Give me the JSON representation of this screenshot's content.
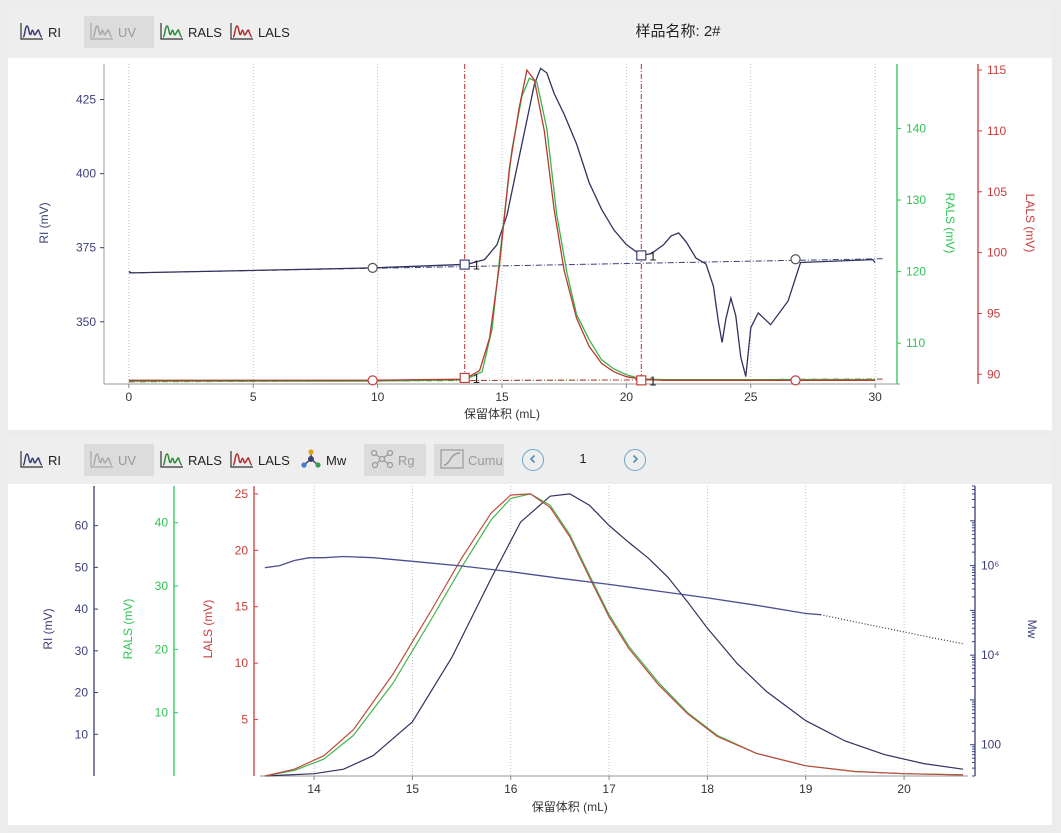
{
  "top": {
    "toolbar": {
      "buttons": [
        {
          "label": "RI",
          "icon": "ri-trace-icon",
          "color": "#3b3f78",
          "enabled": true
        },
        {
          "label": "UV",
          "icon": "uv-trace-icon",
          "color": "#9a9a9a",
          "enabled": false
        },
        {
          "label": "RALS",
          "icon": "rals-trace-icon",
          "color": "#2e8b3a",
          "enabled": true
        },
        {
          "label": "LALS",
          "icon": "lals-trace-icon",
          "color": "#b03030",
          "enabled": true
        }
      ]
    },
    "title": "样品名称: 2#"
  },
  "bottom": {
    "toolbar": {
      "buttons": [
        {
          "label": "RI",
          "icon": "ri-trace-icon",
          "color": "#3b3f78",
          "enabled": true
        },
        {
          "label": "UV",
          "icon": "uv-trace-icon",
          "color": "#9a9a9a",
          "enabled": false
        },
        {
          "label": "RALS",
          "icon": "rals-trace-icon",
          "color": "#2e8b3a",
          "enabled": true
        },
        {
          "label": "LALS",
          "icon": "lals-trace-icon",
          "color": "#b03030",
          "enabled": true
        },
        {
          "label": "Mw",
          "icon": "mw-molecule-icon",
          "color": "#3b3f78",
          "enabled": true
        },
        {
          "label": "Rg",
          "icon": "rg-network-icon",
          "color": "#9a9a9a",
          "enabled": false
        },
        {
          "label": "Cumu",
          "icon": "cumulative-curve-icon",
          "color": "#9a9a9a",
          "enabled": false
        }
      ],
      "prev_icon": "chevron-left-icon",
      "next_icon": "chevron-right-icon",
      "page": "1"
    }
  },
  "chart_data": [
    {
      "type": "line",
      "title": "样品名称: 2#",
      "xlabel": "保留体积 (mL)",
      "xlim": [
        -1,
        31
      ],
      "xticks": [
        0,
        5,
        10,
        15,
        20,
        25,
        30
      ],
      "grid": "vertical dotted",
      "axes": [
        {
          "id": "RI",
          "label": "RI (mV)",
          "side": "left",
          "color": "#3b3f78",
          "lim": [
            329,
            437
          ],
          "ticks": [
            350,
            375,
            400,
            425
          ]
        },
        {
          "id": "RALS",
          "label": "RALS (mV)",
          "side": "right",
          "color": "#2ec456",
          "lim": [
            104.3,
            149
          ],
          "ticks": [
            110,
            120,
            130,
            140
          ]
        },
        {
          "id": "LALS",
          "label": "LALS (mV)",
          "side": "right",
          "color": "#c83c3c",
          "lim": [
            89.2,
            115.5
          ],
          "ticks": [
            90,
            95,
            100,
            105,
            110,
            115
          ]
        }
      ],
      "series": [
        {
          "name": "RI",
          "axis": "RI",
          "color": "#30325f",
          "x": [
            0,
            0.1,
            9.8,
            13.6,
            14.3,
            14.8,
            15.2,
            15.6,
            16.0,
            16.3,
            16.55,
            16.8,
            17.1,
            17.5,
            18.0,
            18.5,
            19.0,
            19.5,
            20.0,
            20.6,
            21.0,
            21.5,
            21.8,
            22.1,
            22.4,
            22.8,
            23.2,
            23.5,
            23.7,
            23.85,
            24.0,
            24.2,
            24.4,
            24.6,
            24.8,
            25.0,
            25.3,
            25.8,
            26.5,
            27.0,
            29.9,
            30.0
          ],
          "y": [
            367,
            366.5,
            368.2,
            369.4,
            371,
            376,
            386,
            402,
            418,
            430,
            435.5,
            434,
            427,
            420,
            410,
            397,
            388,
            381,
            376,
            372.4,
            373,
            376,
            379,
            380,
            377,
            371.5,
            369.5,
            362,
            350,
            343,
            351,
            358,
            352,
            338,
            331.5,
            348,
            353,
            349,
            357,
            370,
            371,
            370
          ]
        },
        {
          "name": "RALS",
          "axis": "RALS",
          "color": "#38b44a",
          "x": [
            0,
            9.8,
            13.5,
            14.2,
            14.6,
            15.0,
            15.4,
            15.8,
            16.1,
            16.4,
            16.8,
            17.2,
            17.6,
            18.0,
            18.5,
            19.0,
            19.5,
            20.0,
            20.6,
            21.5,
            26.8,
            30.0
          ],
          "y": [
            104.7,
            104.7,
            104.9,
            106,
            112,
            125,
            137,
            144.5,
            147,
            146.5,
            140,
            128,
            120,
            114,
            110.5,
            107.7,
            106.4,
            105.6,
            105,
            104.9,
            104.9,
            104.9
          ]
        },
        {
          "name": "LALS",
          "axis": "LALS",
          "color": "#b83a30",
          "x": [
            0,
            9.8,
            13.5,
            14.1,
            14.5,
            14.9,
            15.3,
            15.7,
            16.0,
            16.3,
            16.7,
            17.1,
            17.5,
            18.0,
            18.5,
            19.0,
            19.5,
            20.0,
            20.6,
            21.5,
            26.8,
            30.0
          ],
          "y": [
            89.5,
            89.5,
            89.6,
            90.3,
            93,
            99,
            107,
            112,
            115,
            114.2,
            110,
            103.5,
            98.5,
            94.6,
            92.3,
            90.9,
            90.2,
            89.8,
            89.6,
            89.5,
            89.5,
            89.5
          ]
        }
      ],
      "baselines": [
        {
          "axis": "RI",
          "x": [
            0,
            30.3
          ],
          "y": [
            366.5,
            371.3
          ],
          "color": "#3b3f78",
          "style": "dash-dot"
        },
        {
          "axis": "RALS",
          "x": [
            0,
            30.3
          ],
          "y": [
            104.6,
            105.0
          ],
          "color": "#38b44a",
          "style": "dash-dot"
        },
        {
          "axis": "LALS",
          "x": [
            0,
            30.3
          ],
          "y": [
            89.4,
            89.6
          ],
          "color": "#b83a30",
          "style": "dash-dot"
        }
      ],
      "peak_limits": [
        {
          "x": 13.5,
          "color": "#b03030",
          "label": "1"
        },
        {
          "x": 20.6,
          "color": "#b03030",
          "label": "1"
        }
      ],
      "baseline_markers": [
        {
          "x": 9.8,
          "y": 368.2,
          "axis": "RI"
        },
        {
          "x": 26.8,
          "y": 371.1,
          "axis": "RI"
        },
        {
          "x": 9.8,
          "y": 89.5,
          "axis": "LALS"
        },
        {
          "x": 26.8,
          "y": 89.5,
          "axis": "LALS"
        }
      ],
      "limit_markers": [
        {
          "x": 13.5,
          "y": 369.3,
          "axis": "RI",
          "label": "1"
        },
        {
          "x": 20.6,
          "y": 372.4,
          "axis": "RI",
          "label": "1"
        },
        {
          "x": 13.5,
          "y": 89.7,
          "axis": "LALS",
          "label": "1"
        },
        {
          "x": 20.6,
          "y": 89.5,
          "axis": "LALS",
          "label": "1"
        }
      ]
    },
    {
      "type": "line",
      "xlabel": "保留体积 (mL)",
      "xlim": [
        13.45,
        20.65
      ],
      "xticks": [
        14,
        15,
        16,
        17,
        18,
        19,
        20
      ],
      "grid": "vertical dotted",
      "axes": [
        {
          "id": "RI",
          "label": "RI (mV)",
          "side": "left",
          "color": "#3b3f78",
          "lim": [
            0,
            69.5
          ],
          "ticks": [
            10,
            20,
            30,
            40,
            50,
            60
          ]
        },
        {
          "id": "RALS",
          "label": "RALS (mV)",
          "side": "left",
          "color": "#2ec456",
          "lim": [
            0,
            45.8
          ],
          "ticks": [
            10,
            20,
            30,
            40
          ]
        },
        {
          "id": "LALS",
          "label": "LALS (mV)",
          "side": "left",
          "color": "#c83c3c",
          "lim": [
            0,
            25.7
          ],
          "ticks": [
            5,
            10,
            15,
            20,
            25
          ]
        },
        {
          "id": "Mw",
          "label": "Mw",
          "side": "right",
          "color": "#3b3f78",
          "scale": "log",
          "lim": [
            20,
            60000000
          ],
          "ticks": [
            100,
            10000,
            1000000
          ],
          "tick_labels": [
            "100",
            "10⁴",
            "10⁶"
          ]
        }
      ],
      "series": [
        {
          "name": "RI",
          "axis": "LALS",
          "color": "#30325f",
          "x": [
            13.5,
            14.0,
            14.3,
            14.6,
            15.0,
            15.4,
            15.8,
            16.1,
            16.4,
            16.6,
            16.8,
            17.0,
            17.2,
            17.4,
            17.6,
            17.8,
            18.0,
            18.3,
            18.6,
            19.0,
            19.4,
            19.8,
            20.2,
            20.6
          ],
          "y": [
            0,
            0.2,
            0.6,
            1.8,
            4.8,
            10.5,
            17.5,
            22.5,
            24.8,
            25.0,
            24.0,
            22.2,
            20.7,
            19.3,
            17.6,
            15.4,
            13.1,
            10.0,
            7.5,
            4.9,
            3.1,
            1.9,
            1.1,
            0.6
          ]
        },
        {
          "name": "RALS",
          "axis": "LALS",
          "color": "#44b450",
          "x": [
            13.5,
            13.8,
            14.1,
            14.4,
            14.8,
            15.2,
            15.5,
            15.8,
            16.0,
            16.2,
            16.4,
            16.6,
            16.8,
            17.0,
            17.2,
            17.5,
            17.8,
            18.1,
            18.5,
            19.0,
            19.5,
            20.0,
            20.6
          ],
          "y": [
            0,
            0.5,
            1.5,
            3.6,
            8.2,
            14.0,
            18.5,
            22.7,
            24.6,
            25.0,
            24.0,
            21.4,
            17.8,
            14.3,
            11.5,
            8.3,
            5.6,
            3.6,
            2.0,
            0.9,
            0.4,
            0.2,
            0.1
          ]
        },
        {
          "name": "LALS",
          "axis": "LALS",
          "color": "#c04a3c",
          "x": [
            13.5,
            13.8,
            14.1,
            14.4,
            14.8,
            15.2,
            15.5,
            15.8,
            16.0,
            16.2,
            16.4,
            16.6,
            16.8,
            17.0,
            17.2,
            17.5,
            17.8,
            18.1,
            18.5,
            19.0,
            19.5,
            20.0,
            20.6
          ],
          "y": [
            0,
            0.6,
            1.8,
            4.1,
            9.0,
            14.8,
            19.3,
            23.3,
            24.9,
            25.0,
            23.8,
            21.2,
            17.6,
            14.1,
            11.3,
            8.1,
            5.5,
            3.5,
            2.0,
            0.9,
            0.4,
            0.2,
            0.1
          ]
        },
        {
          "name": "Mw",
          "axis": "Mw",
          "color": "#4b4e93",
          "x": [
            13.5,
            13.65,
            13.8,
            13.95,
            14.1,
            14.3,
            14.6,
            15.0,
            15.5,
            16.0,
            16.5,
            17.0,
            17.5,
            18.0,
            18.5,
            19.0,
            19.15,
            19.6,
            20.0,
            20.3,
            20.6
          ],
          "y": [
            900000,
            1000000,
            1300000,
            1500000,
            1500000,
            1600000,
            1500000,
            1250000,
            980000,
            730000,
            520000,
            380000,
            270000,
            190000,
            130000,
            85000,
            80000,
            50000,
            33000,
            24000,
            18000
          ],
          "dotted_from_x": 19.15
        }
      ]
    }
  ]
}
